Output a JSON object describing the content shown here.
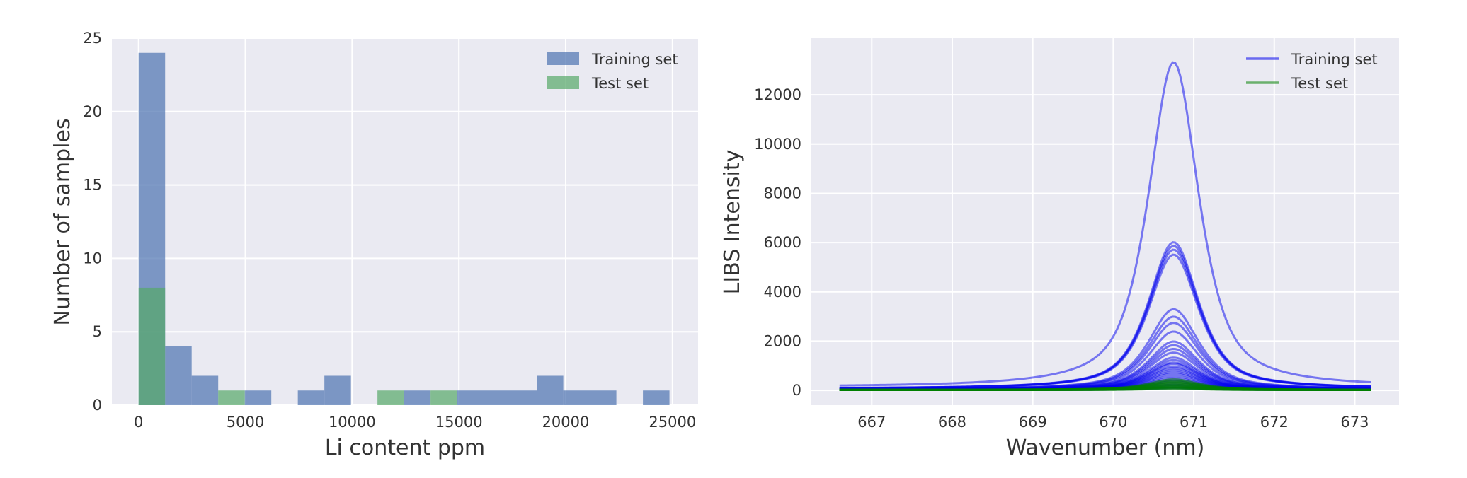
{
  "chart_data": [
    {
      "type": "bar",
      "subtype": "histogram",
      "xlabel": "Li content ppm",
      "ylabel": "Number of samples",
      "xlim": [
        -1250,
        26200
      ],
      "ylim": [
        0,
        25
      ],
      "xticks": [
        0,
        5000,
        10000,
        15000,
        20000,
        25000
      ],
      "yticks": [
        0,
        5,
        10,
        15,
        20,
        25
      ],
      "grid": true,
      "legend_position": "top-right",
      "bin_width": 1243,
      "series": [
        {
          "name": "Training set",
          "color": "#4C72B0",
          "bins": [
            {
              "x0": 0,
              "count": 24
            },
            {
              "x0": 1243,
              "count": 4
            },
            {
              "x0": 2486,
              "count": 2
            },
            {
              "x0": 4972,
              "count": 1
            },
            {
              "x0": 7458,
              "count": 1
            },
            {
              "x0": 8701,
              "count": 2
            },
            {
              "x0": 12430,
              "count": 1
            },
            {
              "x0": 14916,
              "count": 1
            },
            {
              "x0": 16159,
              "count": 1
            },
            {
              "x0": 17402,
              "count": 1
            },
            {
              "x0": 18645,
              "count": 2
            },
            {
              "x0": 19888,
              "count": 1
            },
            {
              "x0": 21131,
              "count": 1
            },
            {
              "x0": 23617,
              "count": 1
            }
          ]
        },
        {
          "name": "Test set",
          "color": "#55A868",
          "bins": [
            {
              "x0": 0,
              "count": 8
            },
            {
              "x0": 3729,
              "count": 1
            },
            {
              "x0": 11187,
              "count": 1
            },
            {
              "x0": 13673,
              "count": 1
            }
          ]
        }
      ]
    },
    {
      "type": "line",
      "xlabel": "Wavenumber (nm)",
      "ylabel": "LIBS Intensity",
      "xlim": [
        666.25,
        673.55
      ],
      "ylim": [
        -600,
        14300
      ],
      "xticks": [
        667,
        668,
        669,
        670,
        671,
        672,
        673
      ],
      "yticks": [
        0,
        2000,
        4000,
        6000,
        8000,
        10000,
        12000
      ],
      "x_range": [
        666.6,
        673.2
      ],
      "peak_center": 670.75,
      "grid": true,
      "legend_position": "top-right",
      "series": [
        {
          "name": "Training set",
          "color": "#0000ee",
          "peak_heights": [
            13200,
            5950,
            5800,
            5650,
            5450,
            3250,
            2950,
            2700,
            2350,
            1950,
            1800,
            1650,
            1500,
            1300,
            1200,
            1100,
            1050,
            950,
            880,
            800,
            720,
            650,
            560,
            480,
            400,
            330,
            260,
            200,
            150,
            100,
            70
          ]
        },
        {
          "name": "Test set",
          "color": "#008000",
          "peak_heights": [
            420,
            360,
            320,
            280,
            240,
            200,
            160,
            130,
            100,
            70,
            50
          ]
        }
      ]
    }
  ]
}
